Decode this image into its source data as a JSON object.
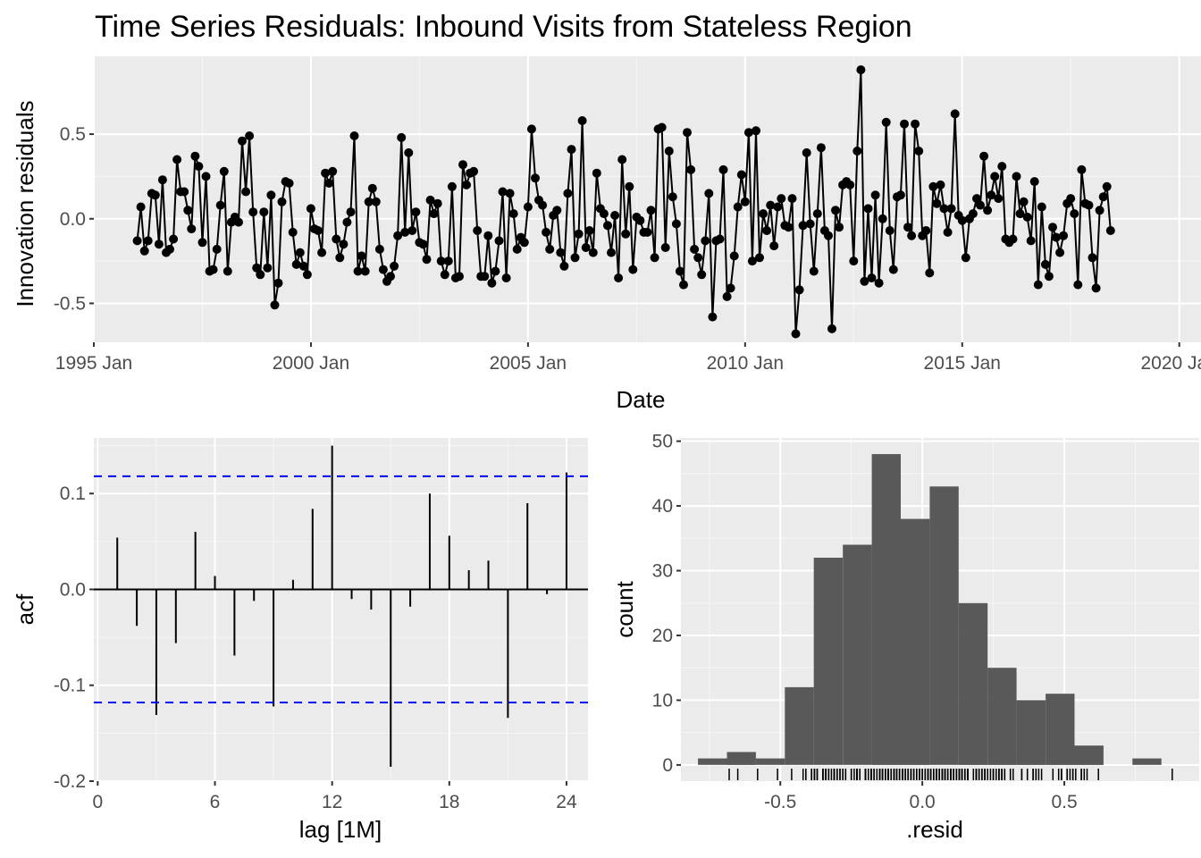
{
  "chart_data": [
    {
      "type": "line",
      "title": "Time Series Residuals: Inbound Visits from Stateless Region",
      "xlabel": "Date",
      "ylabel": "Innovation residuals",
      "x_tick_labels": [
        "1995 Jan",
        "2000 Jan",
        "2005 Jan",
        "2010 Jan",
        "2015 Jan",
        "2020 Jan"
      ],
      "x_tick_years": [
        1995,
        2000,
        2005,
        2010,
        2015,
        2020
      ],
      "y_tick_labels": [
        "-0.5",
        "0.0",
        "0.5"
      ],
      "y_ticks": [
        -0.5,
        0.0,
        0.5
      ],
      "xlim": [
        1995.0,
        2020.5
      ],
      "ylim": [
        -0.73,
        0.96
      ],
      "x_start": "1996 Jan",
      "x_end": "2019 Jan",
      "frequency": "monthly",
      "values": [
        -0.13,
        0.07,
        -0.19,
        -0.13,
        0.15,
        0.14,
        -0.15,
        0.23,
        -0.2,
        -0.18,
        -0.12,
        0.35,
        0.16,
        0.16,
        0.05,
        -0.06,
        0.37,
        0.31,
        -0.14,
        0.25,
        -0.31,
        -0.3,
        -0.18,
        0.08,
        0.28,
        -0.31,
        -0.02,
        0.01,
        -0.02,
        0.46,
        0.16,
        0.49,
        0.04,
        -0.29,
        -0.33,
        0.04,
        -0.29,
        0.14,
        -0.51,
        -0.38,
        0.1,
        0.22,
        0.21,
        -0.08,
        -0.27,
        -0.2,
        -0.28,
        -0.33,
        0.06,
        -0.06,
        -0.07,
        -0.2,
        0.27,
        0.21,
        0.28,
        -0.12,
        -0.23,
        -0.15,
        -0.02,
        0.04,
        0.49,
        -0.31,
        -0.22,
        -0.31,
        0.1,
        0.18,
        0.1,
        -0.18,
        -0.3,
        -0.37,
        -0.34,
        -0.28,
        -0.1,
        0.48,
        -0.08,
        0.39,
        -0.07,
        0.04,
        -0.14,
        -0.15,
        -0.24,
        0.11,
        0.03,
        0.09,
        -0.25,
        -0.33,
        -0.25,
        0.19,
        -0.35,
        -0.34,
        0.32,
        0.2,
        0.27,
        0.28,
        -0.07,
        -0.34,
        -0.34,
        -0.1,
        -0.38,
        -0.31,
        -0.13,
        0.16,
        -0.35,
        0.15,
        0.03,
        -0.18,
        -0.11,
        -0.14,
        0.07,
        0.53,
        0.24,
        0.11,
        0.08,
        -0.08,
        -0.18,
        0.02,
        0.05,
        -0.2,
        -0.28,
        0.15,
        0.41,
        -0.23,
        -0.09,
        0.58,
        -0.17,
        -0.07,
        -0.2,
        0.27,
        0.06,
        0.03,
        -0.04,
        -0.2,
        0.02,
        -0.35,
        0.35,
        -0.09,
        0.19,
        -0.3,
        0.01,
        -0.01,
        -0.08,
        -0.08,
        0.05,
        -0.23,
        0.53,
        0.54,
        -0.17,
        0.4,
        0.13,
        -0.03,
        -0.31,
        -0.39,
        0.51,
        0.29,
        -0.18,
        -0.23,
        -0.33,
        -0.13,
        0.15,
        -0.58,
        -0.13,
        -0.12,
        0.29,
        -0.46,
        -0.41,
        -0.22,
        0.07,
        0.26,
        0.1,
        0.51,
        -0.25,
        0.52,
        -0.23,
        0.03,
        -0.07,
        0.08,
        -0.16,
        0.07,
        0.12,
        -0.04,
        -0.05,
        0.12,
        -0.68,
        -0.42,
        -0.04,
        0.39,
        -0.03,
        -0.31,
        0.03,
        0.42,
        -0.07,
        -0.1,
        -0.65,
        0.05,
        -0.05,
        0.2,
        0.22,
        0.2,
        -0.25,
        0.4,
        0.88,
        -0.37,
        0.06,
        -0.35,
        0.14,
        -0.38,
        0.0,
        0.57,
        -0.07,
        -0.3,
        0.13,
        0.14,
        0.56,
        -0.05,
        -0.1,
        0.56,
        0.4,
        -0.1,
        -0.07,
        -0.32,
        0.19,
        0.09,
        0.2,
        0.06,
        -0.08,
        0.06,
        0.62,
        0.02,
        -0.01,
        -0.23,
        0.0,
        0.03,
        0.12,
        0.08,
        0.37,
        0.05,
        0.14,
        0.25,
        0.12,
        0.31,
        -0.12,
        -0.14,
        -0.12,
        0.25,
        0.03,
        0.1,
        0.01,
        -0.13,
        0.22,
        -0.39,
        0.07,
        -0.27,
        -0.34,
        -0.05,
        -0.11,
        -0.2,
        -0.1,
        0.09,
        0.12,
        0.03,
        -0.39,
        0.29,
        0.09,
        0.08,
        -0.23,
        -0.41,
        0.05,
        0.13,
        0.19,
        -0.07
      ]
    },
    {
      "type": "bar",
      "xlabel": "lag [1M]",
      "ylabel": "acf",
      "x_tick_labels": [
        "0",
        "6",
        "12",
        "18",
        "24"
      ],
      "x_ticks": [
        0,
        6,
        12,
        18,
        24
      ],
      "y_tick_labels": [
        "-0.2",
        "-0.1",
        "0.0",
        "0.1"
      ],
      "y_ticks": [
        -0.2,
        -0.1,
        0.0,
        0.1
      ],
      "xlim": [
        -0.2,
        25.1
      ],
      "ylim": [
        -0.2,
        0.158
      ],
      "confidence_bound": 0.118,
      "confidence_line_color": "#0000ff",
      "lags": [
        1,
        2,
        3,
        4,
        5,
        6,
        7,
        8,
        9,
        10,
        11,
        12,
        13,
        14,
        15,
        16,
        17,
        18,
        19,
        20,
        21,
        22,
        23,
        24
      ],
      "values": [
        0.054,
        -0.038,
        -0.131,
        -0.056,
        0.06,
        0.014,
        -0.069,
        -0.012,
        -0.122,
        0.01,
        0.084,
        0.15,
        -0.01,
        -0.021,
        -0.185,
        -0.018,
        0.1,
        0.056,
        0.02,
        0.03,
        -0.134,
        0.09,
        -0.005,
        0.122
      ]
    },
    {
      "type": "histogram",
      "xlabel": ".resid",
      "ylabel": "count",
      "x_tick_labels": [
        "-0.5",
        "0.0",
        "0.5"
      ],
      "x_ticks": [
        -0.5,
        0.0,
        0.5
      ],
      "y_tick_labels": [
        "0",
        "10",
        "20",
        "30",
        "40",
        "50"
      ],
      "y_ticks": [
        0,
        10,
        20,
        30,
        40,
        50
      ],
      "xlim": [
        -0.85,
        0.975
      ],
      "ylim": [
        -2.5,
        50.5
      ],
      "bar_color": "#595959",
      "bin_edges": [
        -0.79,
        -0.688,
        -0.586,
        -0.484,
        -0.382,
        -0.28,
        -0.178,
        -0.076,
        0.026,
        0.128,
        0.23,
        0.332,
        0.434,
        0.536,
        0.638,
        0.74,
        0.842
      ],
      "counts": [
        1,
        2,
        1,
        12,
        32,
        34,
        48,
        38,
        43,
        25,
        15,
        10,
        11,
        3,
        0,
        1
      ],
      "rug": true
    }
  ]
}
